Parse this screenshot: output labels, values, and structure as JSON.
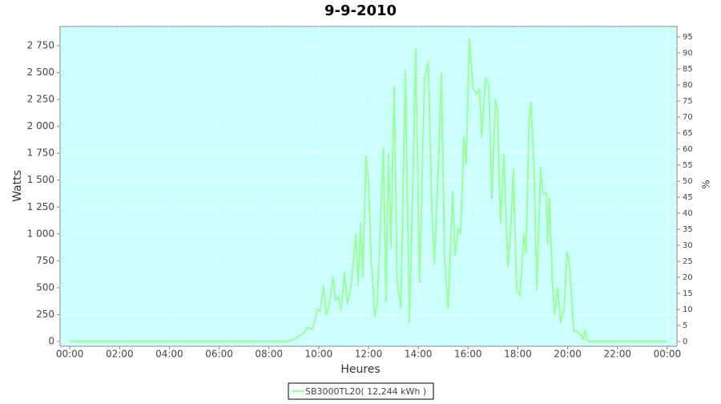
{
  "chart_data": {
    "type": "line",
    "title": "9-9-2010",
    "xlabel": "Heures",
    "ylabel": "Watts",
    "y2label": "%",
    "x": [
      0,
      8.75,
      9.0,
      9.2,
      9.4,
      9.55,
      9.7,
      9.8,
      9.95,
      10.05,
      10.2,
      10.3,
      10.4,
      10.58,
      10.68,
      10.78,
      10.9,
      11.04,
      11.15,
      11.3,
      11.49,
      11.58,
      11.68,
      11.77,
      11.9,
      12.0,
      12.1,
      12.25,
      12.35,
      12.6,
      12.7,
      12.8,
      12.9,
      13.03,
      13.15,
      13.3,
      13.48,
      13.64,
      13.75,
      13.9,
      14.05,
      14.25,
      14.4,
      14.55,
      14.65,
      14.8,
      14.93,
      15.05,
      15.2,
      15.38,
      15.48,
      15.6,
      15.7,
      15.83,
      15.92,
      16.05,
      16.2,
      16.35,
      16.45,
      16.55,
      16.7,
      16.83,
      16.96,
      17.1,
      17.18,
      17.3,
      17.44,
      17.6,
      17.7,
      17.82,
      17.95,
      18.08,
      18.24,
      18.33,
      18.45,
      18.53,
      18.65,
      18.76,
      18.92,
      19.0,
      19.15,
      19.2,
      19.27,
      19.38,
      19.47,
      19.6,
      19.72,
      19.85,
      19.98,
      20.08,
      20.24,
      20.4,
      20.55,
      20.65,
      20.69,
      20.8,
      20.85,
      24
    ],
    "series": [
      {
        "name": "SB3000TL20( 12,244 kWh )",
        "color": "#99ff99",
        "values": [
          0,
          0,
          20,
          50,
          80,
          130,
          110,
          150,
          300,
          280,
          520,
          250,
          320,
          600,
          380,
          420,
          290,
          640,
          350,
          520,
          1000,
          520,
          1100,
          600,
          1720,
          1500,
          800,
          230,
          350,
          1800,
          370,
          1750,
          870,
          2370,
          550,
          310,
          2520,
          180,
          1150,
          2720,
          550,
          2450,
          2600,
          1200,
          720,
          1600,
          2500,
          800,
          300,
          1400,
          800,
          1050,
          1000,
          1900,
          1650,
          2810,
          2350,
          2300,
          2350,
          1900,
          2450,
          2380,
          1330,
          2250,
          2150,
          1100,
          1740,
          700,
          1000,
          1600,
          480,
          420,
          1000,
          820,
          2050,
          2230,
          1600,
          480,
          1620,
          1380,
          1380,
          900,
          1330,
          600,
          250,
          500,
          180,
          300,
          830,
          700,
          100,
          90,
          50,
          20,
          110,
          10,
          0,
          0
        ]
      }
    ],
    "xlim": [
      -0.39,
      24.39
    ],
    "xticks": [
      {
        "value": 0,
        "label": "00:00"
      },
      {
        "value": 2,
        "label": "02:00"
      },
      {
        "value": 4,
        "label": "04:00"
      },
      {
        "value": 6,
        "label": "06:00"
      },
      {
        "value": 8,
        "label": "08:00"
      },
      {
        "value": 10,
        "label": "10:00"
      },
      {
        "value": 12,
        "label": "12:00"
      },
      {
        "value": 14,
        "label": "14:00"
      },
      {
        "value": 16,
        "label": "16:00"
      },
      {
        "value": 18,
        "label": "18:00"
      },
      {
        "value": 20,
        "label": "20:00"
      },
      {
        "value": 22,
        "label": "22:00"
      },
      {
        "value": 24,
        "label": "00:00"
      }
    ],
    "ylim": [
      -45,
      2929
    ],
    "yticks": [
      0,
      250,
      500,
      750,
      {
        "value": 1000,
        "label": "1 000"
      },
      {
        "value": 1250,
        "label": "1 250"
      },
      {
        "value": 1500,
        "label": "1 500"
      },
      {
        "value": 1750,
        "label": "1 750"
      },
      {
        "value": 2000,
        "label": "2 000"
      },
      {
        "value": 2250,
        "label": "2 250"
      },
      {
        "value": 2500,
        "label": "2 500"
      },
      {
        "value": 2750,
        "label": "2 750"
      }
    ],
    "y2lim": [
      -1.5,
      98.25
    ],
    "y2ticks": [
      0,
      5,
      10,
      15,
      20,
      25,
      30,
      35,
      40,
      45,
      50,
      55,
      60,
      65,
      70,
      75,
      80,
      85,
      90,
      95
    ],
    "grid": true,
    "background": "#ccffff"
  }
}
